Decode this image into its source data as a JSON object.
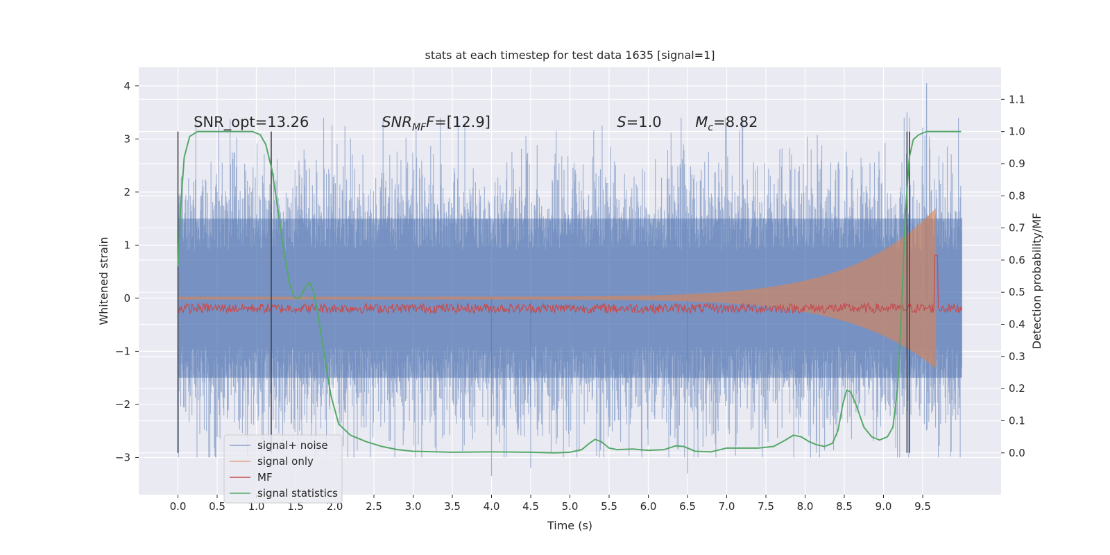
{
  "chart_data": {
    "type": "line",
    "title": "stats at each timestep for test data 1635 [signal=1]",
    "xlabel": "Time (s)",
    "ylabel_left": "Whitened strain",
    "ylabel_right": "Detection probability/MF",
    "xlim": [
      -0.5,
      10.5
    ],
    "ylim_left": [
      -3.7,
      4.35
    ],
    "ylim_right": [
      -0.13,
      1.2
    ],
    "x_ticks": [
      0.0,
      0.5,
      1.0,
      1.5,
      2.0,
      2.5,
      3.0,
      3.5,
      4.0,
      4.5,
      5.0,
      5.5,
      6.0,
      6.5,
      7.0,
      7.5,
      8.0,
      8.5,
      9.0,
      9.5
    ],
    "x_tick_labels": [
      "0.0",
      "0.5",
      "1.0",
      "1.5",
      "2.0",
      "2.5",
      "3.0",
      "3.5",
      "4.0",
      "4.5",
      "5.0",
      "5.5",
      "6.0",
      "6.5",
      "7.0",
      "7.5",
      "8.0",
      "8.5",
      "9.0",
      "9.5"
    ],
    "y_left_ticks": [
      -3,
      -2,
      -1,
      0,
      1,
      2,
      3,
      4
    ],
    "y_left_tick_labels": [
      "−3",
      "−2",
      "−1",
      "0",
      "1",
      "2",
      "3",
      "4"
    ],
    "y_right_ticks": [
      0.0,
      0.1,
      0.2,
      0.3,
      0.4,
      0.5,
      0.6,
      0.7,
      0.8,
      0.9,
      1.0,
      1.1
    ],
    "y_right_tick_labels": [
      "0.0",
      "0.1",
      "0.2",
      "0.3",
      "0.4",
      "0.5",
      "0.6",
      "0.7",
      "0.8",
      "0.9",
      "1.0",
      "1.1"
    ],
    "grid": true,
    "legend_position": "lower-left",
    "colors": {
      "signal_noise": "#4c72b0",
      "signal_only": "#dd8452",
      "mf": "#c44e52",
      "signal_statistics": "#55a868",
      "vlines": "#444444"
    },
    "annotations": [
      {
        "id": "snr-opt",
        "text": "SNR_opt=13.26",
        "x": 0.2
      },
      {
        "id": "snr-mf",
        "text": "=[12.9]",
        "x": 2.6
      },
      {
        "id": "s-value",
        "text": "=1.0",
        "x": 5.6
      },
      {
        "id": "mc-value",
        "text": "=8.82",
        "x": 6.6
      }
    ],
    "vertical_lines": [
      0.0,
      1.19,
      9.3,
      9.33
    ],
    "signal_noise": {
      "name": "signal+ noise",
      "x_range": [
        0.0,
        10.0
      ],
      "typical_band": [
        -1.5,
        1.5
      ],
      "peak_high": 4.05,
      "peak_low": -3.35
    },
    "signal_only": {
      "name": "signal only",
      "x_range": [
        0.0,
        9.67
      ],
      "amplitude_start": 0.03,
      "amplitude_end": 1.7
    },
    "mf": {
      "name": "MF",
      "x_range": [
        0.0,
        10.0
      ],
      "baseline_prob": 0.45,
      "peak": {
        "x": 9.67,
        "prob": 0.615
      }
    },
    "signal_statistics": {
      "name": "signal statistics",
      "x": [
        0.0,
        0.03,
        0.08,
        0.15,
        0.25,
        0.4,
        0.6,
        0.8,
        0.95,
        1.05,
        1.12,
        1.2,
        1.28,
        1.35,
        1.42,
        1.48,
        1.52,
        1.56,
        1.6,
        1.64,
        1.68,
        1.72,
        1.78,
        1.85,
        1.95,
        2.05,
        2.2,
        2.4,
        2.6,
        2.8,
        3.0,
        3.5,
        4.0,
        4.5,
        4.8,
        5.0,
        5.15,
        5.25,
        5.32,
        5.4,
        5.5,
        5.6,
        5.8,
        6.0,
        6.2,
        6.35,
        6.45,
        6.6,
        6.8,
        7.0,
        7.2,
        7.4,
        7.6,
        7.75,
        7.85,
        7.95,
        8.05,
        8.15,
        8.25,
        8.35,
        8.42,
        8.48,
        8.53,
        8.58,
        8.65,
        8.75,
        8.85,
        8.95,
        9.05,
        9.12,
        9.18,
        9.23,
        9.28,
        9.33,
        9.38,
        9.45,
        9.55,
        9.7,
        9.8,
        9.99
      ],
      "values": [
        0.58,
        0.75,
        0.92,
        0.985,
        1.0,
        1.0,
        1.0,
        1.0,
        1.0,
        0.99,
        0.96,
        0.88,
        0.75,
        0.63,
        0.53,
        0.485,
        0.48,
        0.485,
        0.505,
        0.52,
        0.53,
        0.51,
        0.44,
        0.33,
        0.18,
        0.09,
        0.055,
        0.035,
        0.02,
        0.01,
        0.005,
        0.002,
        0.003,
        0.002,
        0.0,
        0.002,
        0.01,
        0.03,
        0.042,
        0.035,
        0.015,
        0.01,
        0.012,
        0.008,
        0.01,
        0.022,
        0.02,
        0.005,
        0.003,
        0.015,
        0.015,
        0.015,
        0.02,
        0.04,
        0.055,
        0.05,
        0.035,
        0.025,
        0.02,
        0.03,
        0.07,
        0.15,
        0.195,
        0.19,
        0.15,
        0.08,
        0.05,
        0.04,
        0.05,
        0.08,
        0.2,
        0.45,
        0.75,
        0.92,
        0.975,
        0.99,
        1.0,
        1.0,
        1.0,
        1.0
      ]
    },
    "legend": [
      {
        "key": "signal_noise",
        "label": "signal+ noise"
      },
      {
        "key": "signal_only",
        "label": "signal only"
      },
      {
        "key": "mf",
        "label": "MF"
      },
      {
        "key": "signal_statistics",
        "label": "signal statistics"
      }
    ]
  }
}
